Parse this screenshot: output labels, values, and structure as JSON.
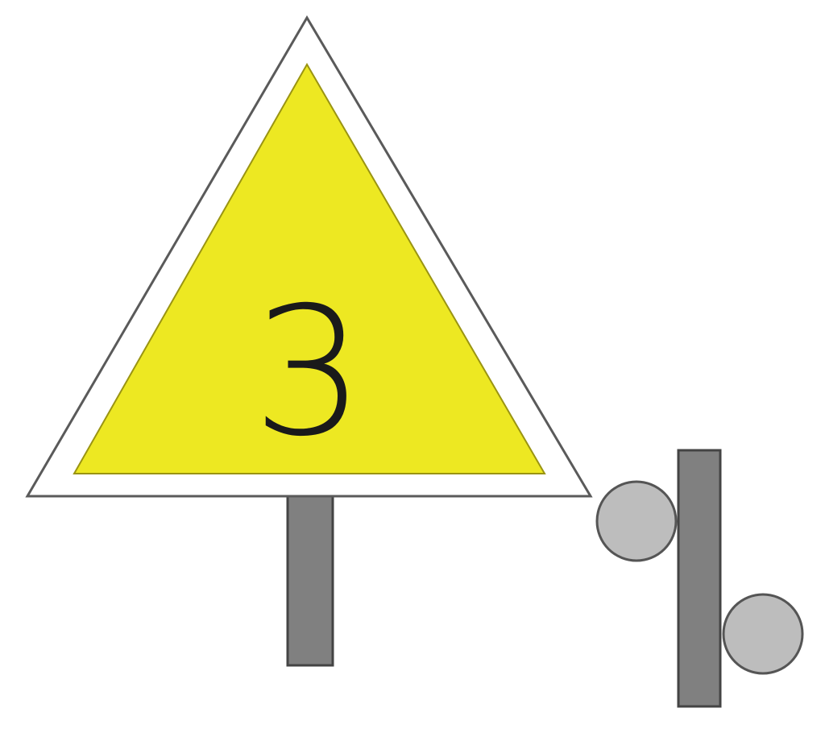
{
  "sign": {
    "number": "3",
    "colors": {
      "fill": "#ede822",
      "inner_border": "#ffffff",
      "outer_stroke": "#5a5a5a",
      "text": "#1a1a1a"
    }
  },
  "posts": {
    "color": "#808080",
    "stroke": "#444444"
  },
  "rollers": {
    "color": "#bdbdbd",
    "stroke": "#555555"
  }
}
